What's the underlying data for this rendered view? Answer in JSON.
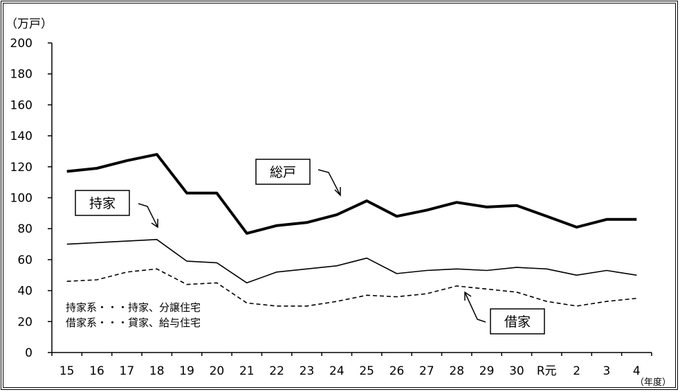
{
  "chart_data": {
    "type": "line",
    "y_unit": "（万戸）",
    "x_unit": "（年度）",
    "ylim": [
      0,
      200
    ],
    "yticks": [
      "0",
      "20",
      "40",
      "60",
      "80",
      "100",
      "120",
      "140",
      "160",
      "180",
      "200"
    ],
    "categories": [
      "15",
      "16",
      "17",
      "18",
      "19",
      "20",
      "21",
      "22",
      "23",
      "24",
      "25",
      "26",
      "27",
      "28",
      "29",
      "30",
      "R元",
      "2",
      "3",
      "4"
    ],
    "series": [
      {
        "name": "総戸",
        "style": "thick",
        "color": "#000000",
        "values": [
          117,
          119,
          124,
          128,
          103,
          103,
          77,
          82,
          84,
          89,
          98,
          88,
          92,
          97,
          94,
          95,
          88,
          81,
          86,
          86
        ]
      },
      {
        "name": "持家",
        "style": "solid",
        "color": "#000000",
        "values": [
          70,
          71,
          72,
          73,
          59,
          58,
          45,
          52,
          54,
          56,
          61,
          51,
          53,
          54,
          53,
          55,
          54,
          50,
          53,
          50
        ]
      },
      {
        "name": "借家",
        "style": "dashed",
        "color": "#000000",
        "values": [
          46,
          47,
          52,
          54,
          44,
          45,
          32,
          30,
          30,
          33,
          37,
          36,
          38,
          43,
          41,
          39,
          33,
          30,
          33,
          35
        ]
      }
    ],
    "legend": {
      "line1": "持家系・・・持家、分譲住宅",
      "line2": "借家系・・・貸家、給与住宅"
    },
    "grid": false
  }
}
